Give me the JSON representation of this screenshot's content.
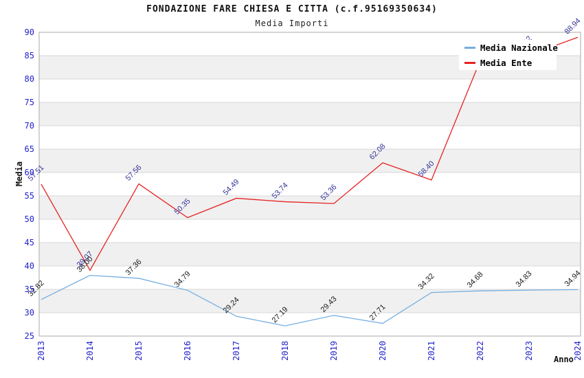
{
  "chart_data": {
    "type": "line",
    "title": "FONDAZIONE FARE CHIESA E CITTA (c.f.95169350634)",
    "subtitle": "Media Importi",
    "xlabel": "Anno",
    "ylabel": "Media",
    "categories": [
      "2013",
      "2014",
      "2015",
      "2016",
      "2017",
      "2018",
      "2019",
      "2020",
      "2021",
      "2022",
      "2023",
      "2024"
    ],
    "series": [
      {
        "name": "Media Nazionale",
        "color": "#74aee0",
        "label_color": "#1a1a1a",
        "values": [
          32.82,
          38.0,
          37.36,
          34.79,
          29.24,
          27.19,
          29.43,
          27.71,
          34.32,
          34.68,
          34.83,
          34.94
        ]
      },
      {
        "name": "Media Ente",
        "color": "#e62222",
        "label_color": "#333399",
        "values": [
          57.51,
          39.07,
          57.56,
          50.35,
          54.49,
          53.74,
          53.36,
          62.08,
          58.4,
          84.0,
          85.12,
          88.94
        ]
      }
    ],
    "ylim": [
      25,
      90
    ],
    "ytick_step": 5,
    "grid": "horizontal-bands",
    "legend_position": "top-right"
  },
  "colors": {
    "tick_label": "#2222cc",
    "band": "#f0f0f0",
    "grid_line": "#d8d8d8",
    "plot_border": "#aaaaaa",
    "background": "#ffffff",
    "legend_bg": "#ffffff"
  }
}
